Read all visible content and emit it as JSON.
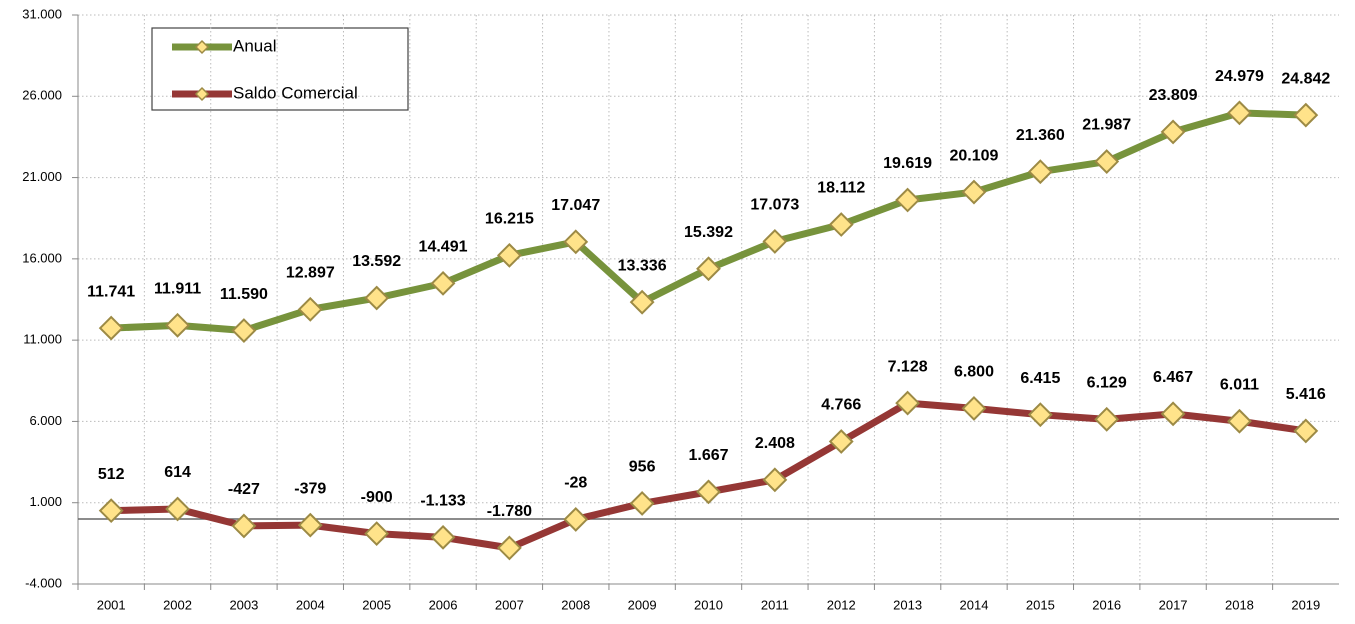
{
  "chart_data": {
    "type": "line",
    "categories": [
      "2001",
      "2002",
      "2003",
      "2004",
      "2005",
      "2006",
      "2007",
      "2008",
      "2009",
      "2010",
      "2011",
      "2012",
      "2013",
      "2014",
      "2015",
      "2016",
      "2017",
      "2018",
      "2019"
    ],
    "series": [
      {
        "name": "Anual",
        "color": "#77933c",
        "values": [
          11741,
          11911,
          11590,
          12897,
          13592,
          14491,
          16215,
          17047,
          13336,
          15392,
          17073,
          18112,
          19619,
          20109,
          21360,
          21987,
          23809,
          24979,
          24842
        ],
        "value_labels": [
          "11.741",
          "11.911",
          "11.590",
          "12.897",
          "13.592",
          "14.491",
          "16.215",
          "17.047",
          "13.336",
          "15.392",
          "17.073",
          "18.112",
          "19.619",
          "20.109",
          "21.360",
          "21.987",
          "23.809",
          "24.979",
          "24.842"
        ]
      },
      {
        "name": "Saldo Comercial",
        "color": "#953735",
        "values": [
          512,
          614,
          -427,
          -379,
          -900,
          -1133,
          -1780,
          -28,
          956,
          1667,
          2408,
          4766,
          7128,
          6800,
          6415,
          6129,
          6467,
          6011,
          5416
        ],
        "value_labels": [
          "512",
          "614",
          "-427",
          "-379",
          "-900",
          "-1.133",
          "-1.780",
          "-28",
          "956",
          "1.667",
          "2.408",
          "4.766",
          "7.128",
          "6.800",
          "6.415",
          "6.129",
          "6.467",
          "6.011",
          "5.416"
        ]
      }
    ],
    "ylim": [
      -4000,
      31000
    ],
    "yticks": [
      {
        "value": -4000,
        "label": "-4.000"
      },
      {
        "value": 1000,
        "label": "1.000"
      },
      {
        "value": 6000,
        "label": "6.000"
      },
      {
        "value": 11000,
        "label": "11.000"
      },
      {
        "value": 16000,
        "label": "16.000"
      },
      {
        "value": 21000,
        "label": "21.000"
      },
      {
        "value": 26000,
        "label": "26.000"
      },
      {
        "value": 31000,
        "label": "31.000"
      }
    ],
    "grid": true,
    "legend": "upper left",
    "marker_color": "#ffe38a"
  }
}
